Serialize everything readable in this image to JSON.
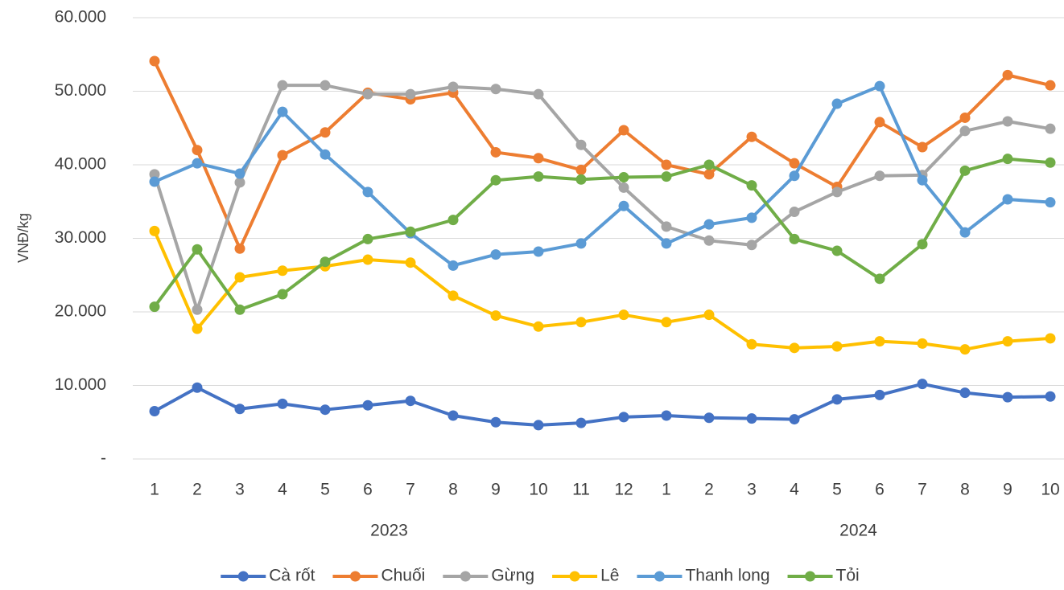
{
  "chart_data": {
    "type": "line",
    "y_label": "VNĐ/kg",
    "category_groups": [
      {
        "label": "2023",
        "categories": [
          "1",
          "2",
          "3",
          "4",
          "5",
          "6",
          "7",
          "8",
          "9",
          "10",
          "11",
          "12"
        ]
      },
      {
        "label": "2024",
        "categories": [
          "1",
          "2",
          "3",
          "4",
          "5",
          "6",
          "7",
          "8",
          "9",
          "10"
        ]
      }
    ],
    "ylim": [
      0,
      60000
    ],
    "yticks": [
      {
        "value": 0,
        "label": "-"
      },
      {
        "value": 10000,
        "label": "10.000"
      },
      {
        "value": 20000,
        "label": "20.000"
      },
      {
        "value": 30000,
        "label": "30.000"
      },
      {
        "value": 40000,
        "label": "40.000"
      },
      {
        "value": 50000,
        "label": "50.000"
      },
      {
        "value": 60000,
        "label": "60.000"
      }
    ],
    "grid": true,
    "legend": "bottom",
    "series": [
      {
        "name": "Cà rốt",
        "color": "#4472c4",
        "values": [
          6500,
          9700,
          6800,
          7500,
          6700,
          7300,
          7900,
          5900,
          5000,
          4600,
          4900,
          5700,
          5900,
          5600,
          5500,
          5400,
          8100,
          8700,
          10200,
          9000,
          8400,
          8500
        ]
      },
      {
        "name": "Chuối",
        "color": "#ed7d31",
        "values": [
          54100,
          42000,
          28600,
          41300,
          44400,
          49800,
          48900,
          49800,
          41700,
          40900,
          39300,
          44700,
          40000,
          38700,
          43800,
          40200,
          37000,
          45800,
          42400,
          46400,
          52200,
          50800
        ]
      },
      {
        "name": "Gừng",
        "color": "#a5a5a5",
        "values": [
          38700,
          20300,
          37600,
          50800,
          50800,
          49600,
          49600,
          50600,
          50300,
          49600,
          42700,
          36900,
          31600,
          29700,
          29100,
          33600,
          36300,
          38500,
          38600,
          44600,
          45900,
          44900
        ]
      },
      {
        "name": "Lê",
        "color": "#ffc000",
        "values": [
          31000,
          17700,
          24700,
          25600,
          26200,
          27100,
          26700,
          22200,
          19500,
          18000,
          18600,
          19600,
          18600,
          19600,
          15600,
          15100,
          15300,
          16000,
          15700,
          14900,
          16000,
          16400
        ]
      },
      {
        "name": "Thanh long",
        "color": "#5b9bd5",
        "values": [
          37700,
          40200,
          38800,
          47200,
          41400,
          36300,
          30700,
          26300,
          27800,
          28200,
          29300,
          34400,
          29300,
          31900,
          32800,
          38500,
          48300,
          50700,
          37900,
          30800,
          35300,
          34900
        ]
      },
      {
        "name": "Tỏi",
        "color": "#70ad47",
        "values": [
          20700,
          28500,
          20300,
          22400,
          26800,
          29900,
          30900,
          32500,
          37900,
          38400,
          38000,
          38300,
          38400,
          40000,
          37200,
          29900,
          28300,
          24500,
          29200,
          39200,
          40800,
          40300
        ]
      }
    ]
  }
}
